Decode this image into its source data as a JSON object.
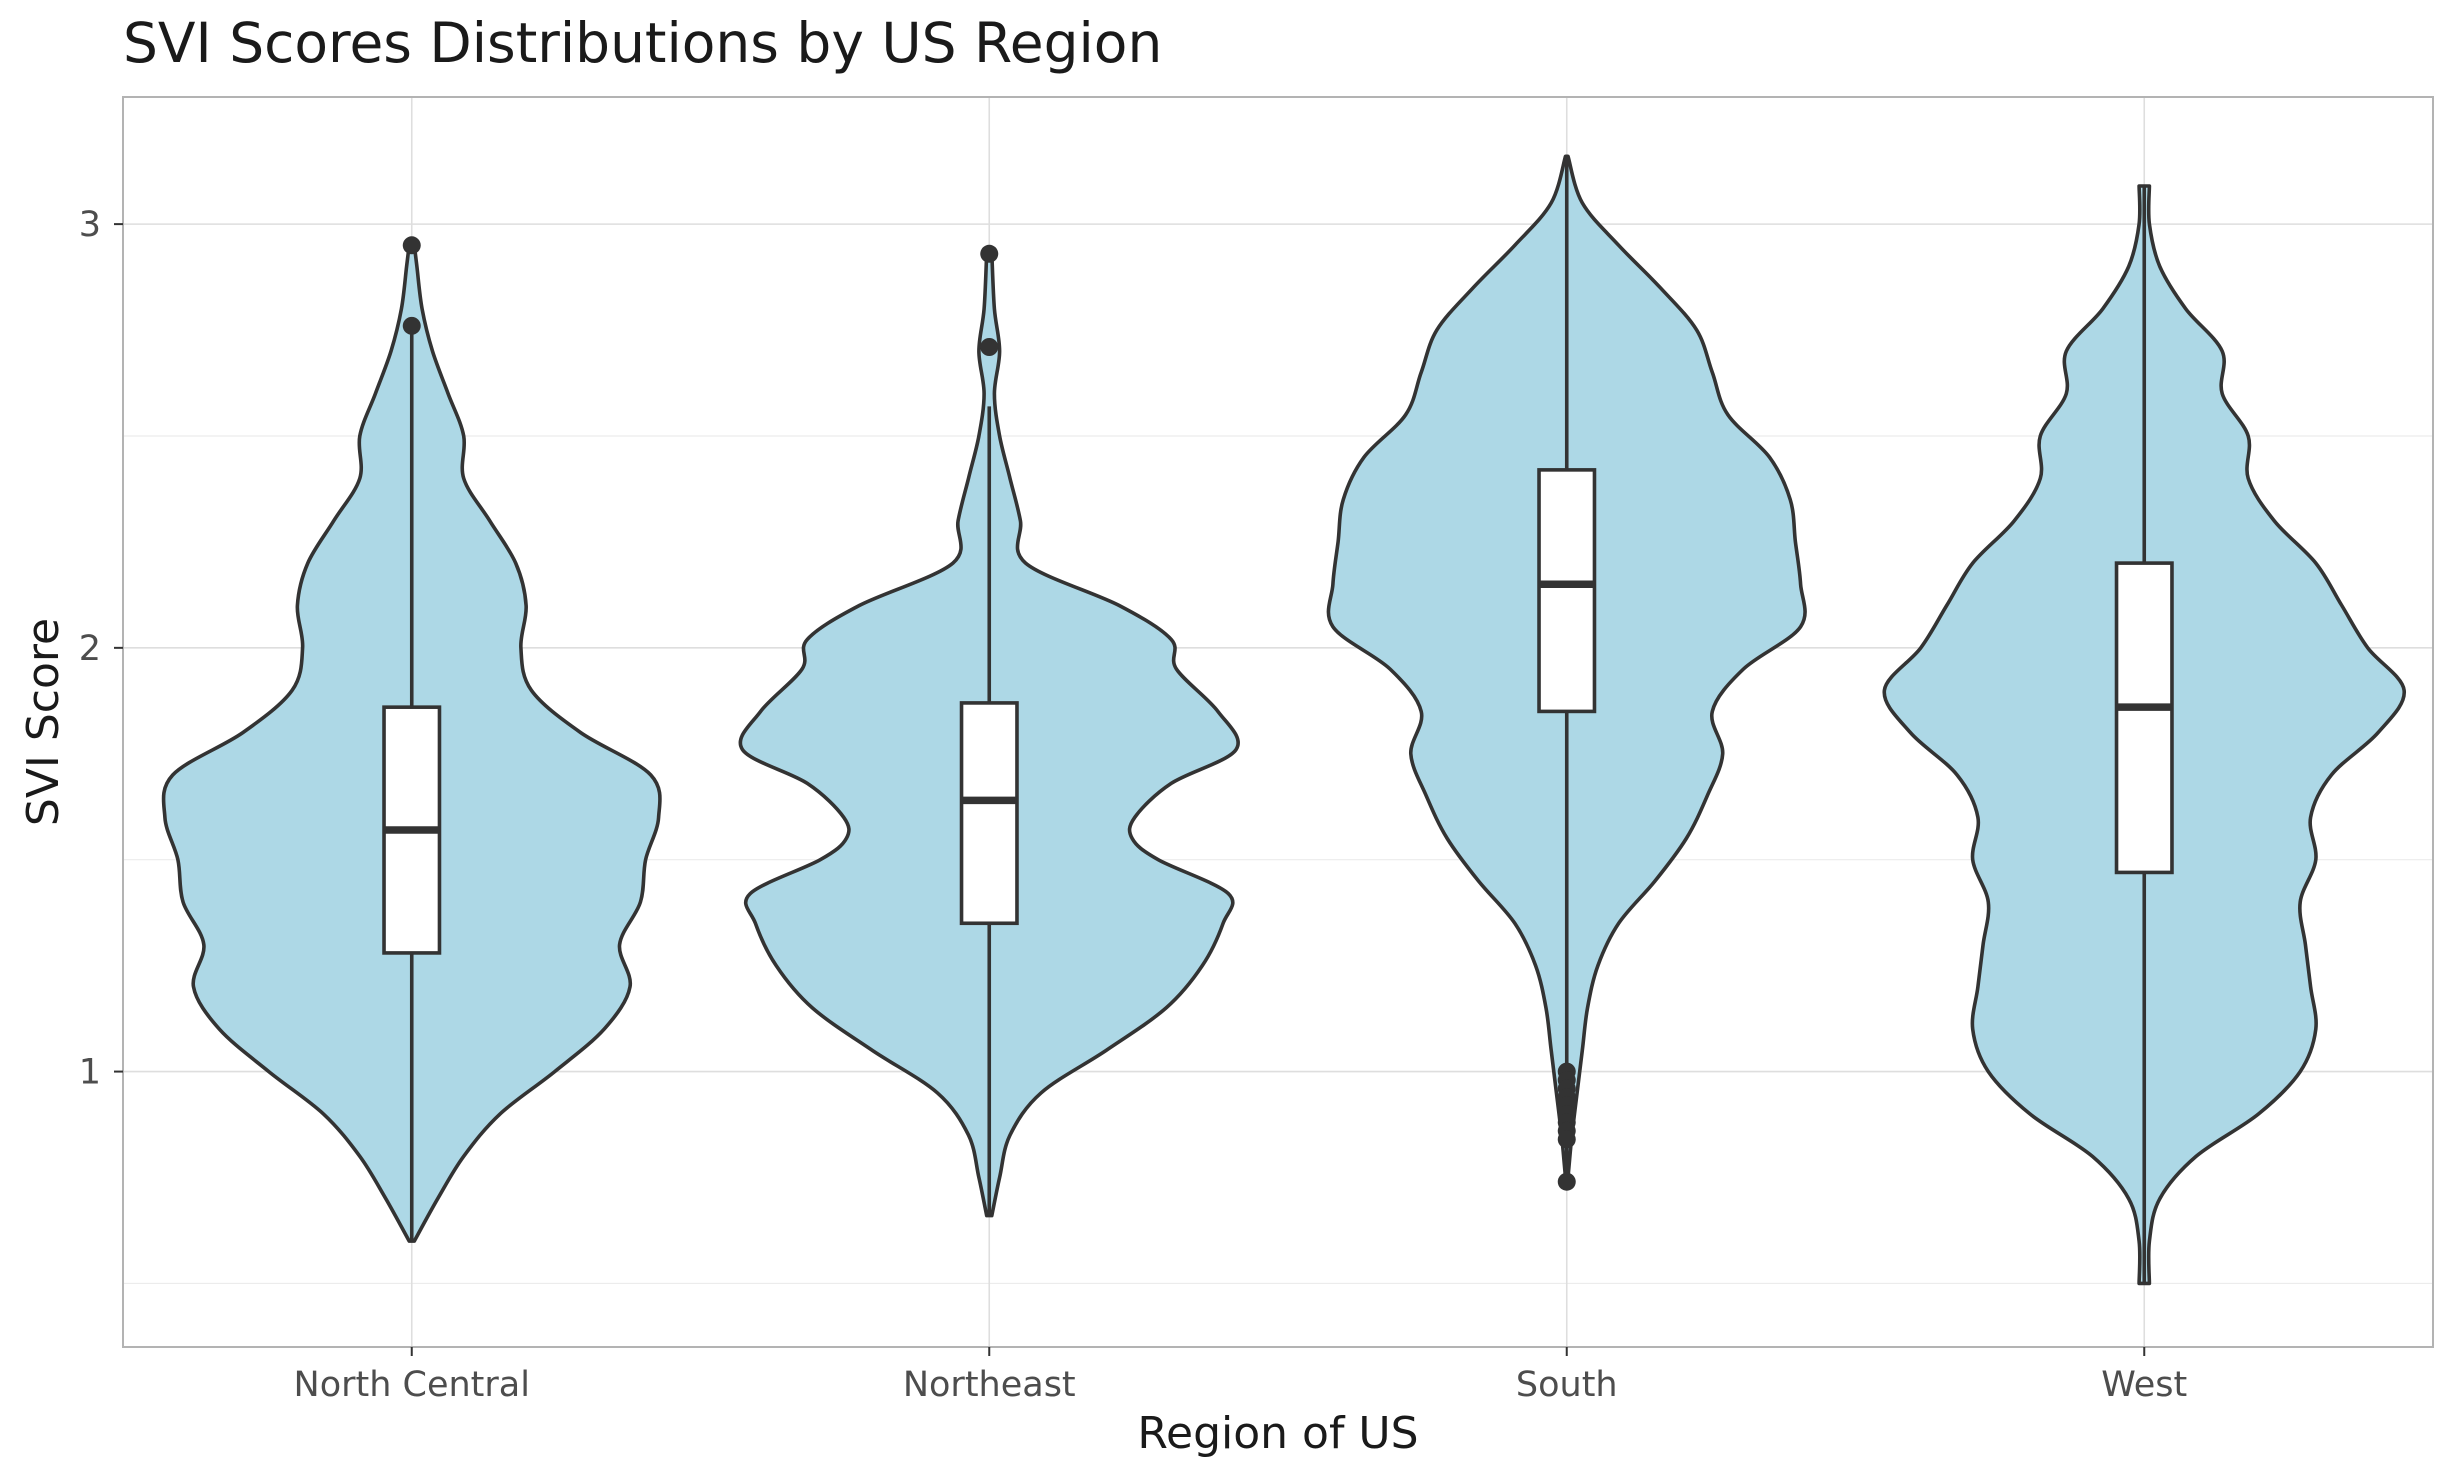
{
  "chart_data": {
    "type": "violin",
    "title": "SVI Scores Distributions by US Region",
    "xlabel": "Region of US",
    "ylabel": "SVI Score",
    "ylim": [
      0.35,
      3.3
    ],
    "y_ticks": [
      1,
      2,
      3
    ],
    "grid": true,
    "fill_color": "#add8e6",
    "line_color": "#333333",
    "categories": [
      "North Central",
      "Northeast",
      "South",
      "West"
    ],
    "series": [
      {
        "category": "North Central",
        "box": {
          "q1": 1.28,
          "median": 1.57,
          "q3": 1.86,
          "whisker_low": 0.6,
          "whisker_high": 2.76
        },
        "outliers": [
          2.95,
          2.76
        ],
        "violin": {
          "y": [
            0.6,
            0.7,
            0.8,
            0.9,
            1.0,
            1.1,
            1.2,
            1.3,
            1.4,
            1.5,
            1.6,
            1.7,
            1.8,
            1.9,
            2.0,
            2.1,
            2.2,
            2.3,
            2.4,
            2.5,
            2.6,
            2.7,
            2.8,
            2.9,
            2.95
          ],
          "width": [
            0.01,
            0.1,
            0.2,
            0.34,
            0.55,
            0.74,
            0.84,
            0.8,
            0.88,
            0.9,
            0.95,
            0.92,
            0.65,
            0.46,
            0.42,
            0.44,
            0.4,
            0.3,
            0.2,
            0.2,
            0.14,
            0.08,
            0.04,
            0.02,
            0.01
          ]
        }
      },
      {
        "category": "Northeast",
        "box": {
          "q1": 1.35,
          "median": 1.64,
          "q3": 1.87,
          "whisker_low": 0.66,
          "whisker_high": 2.57
        },
        "outliers": [
          2.93,
          2.71
        ],
        "violin": {
          "y": [
            0.66,
            0.75,
            0.85,
            0.95,
            1.05,
            1.15,
            1.25,
            1.35,
            1.42,
            1.5,
            1.55,
            1.6,
            1.68,
            1.76,
            1.85,
            1.95,
            2.02,
            2.1,
            2.2,
            2.3,
            2.4,
            2.5,
            2.6,
            2.7,
            2.8,
            2.93
          ],
          "width": [
            0.01,
            0.04,
            0.08,
            0.2,
            0.45,
            0.68,
            0.82,
            0.9,
            0.92,
            0.65,
            0.55,
            0.56,
            0.7,
            0.95,
            0.88,
            0.72,
            0.7,
            0.5,
            0.14,
            0.12,
            0.08,
            0.04,
            0.02,
            0.04,
            0.02,
            0.01
          ]
        }
      },
      {
        "category": "South",
        "box": {
          "q1": 1.85,
          "median": 2.15,
          "q3": 2.42,
          "whisker_low": 0.75,
          "whisker_high": 3.16
        },
        "outliers": [
          1.0,
          0.98,
          0.96,
          0.94,
          0.92,
          0.9,
          0.88,
          0.86,
          0.84,
          0.74
        ],
        "violin": {
          "y": [
            0.75,
            0.85,
            0.95,
            1.05,
            1.15,
            1.25,
            1.35,
            1.45,
            1.55,
            1.65,
            1.75,
            1.85,
            1.95,
            2.05,
            2.15,
            2.25,
            2.35,
            2.45,
            2.55,
            2.65,
            2.75,
            2.85,
            2.95,
            3.05,
            3.16
          ],
          "width": [
            0.005,
            0.02,
            0.04,
            0.06,
            0.08,
            0.12,
            0.2,
            0.34,
            0.46,
            0.54,
            0.6,
            0.56,
            0.68,
            0.9,
            0.9,
            0.88,
            0.86,
            0.78,
            0.62,
            0.56,
            0.5,
            0.36,
            0.2,
            0.06,
            0.005
          ]
        }
      },
      {
        "category": "West",
        "box": {
          "q1": 1.47,
          "median": 1.86,
          "q3": 2.2,
          "whisker_low": 0.5,
          "whisker_high": 3.09
        },
        "outliers": [],
        "violin": {
          "y": [
            0.5,
            0.6,
            0.7,
            0.8,
            0.9,
            1.0,
            1.1,
            1.2,
            1.3,
            1.4,
            1.5,
            1.6,
            1.7,
            1.8,
            1.9,
            2.0,
            2.1,
            2.2,
            2.3,
            2.4,
            2.5,
            2.6,
            2.7,
            2.8,
            2.9,
            3.0,
            3.09
          ],
          "width": [
            0.02,
            0.02,
            0.06,
            0.2,
            0.44,
            0.6,
            0.66,
            0.64,
            0.62,
            0.6,
            0.66,
            0.64,
            0.72,
            0.9,
            1.0,
            0.86,
            0.76,
            0.66,
            0.5,
            0.4,
            0.4,
            0.3,
            0.3,
            0.16,
            0.06,
            0.02,
            0.02
          ]
        }
      }
    ]
  }
}
